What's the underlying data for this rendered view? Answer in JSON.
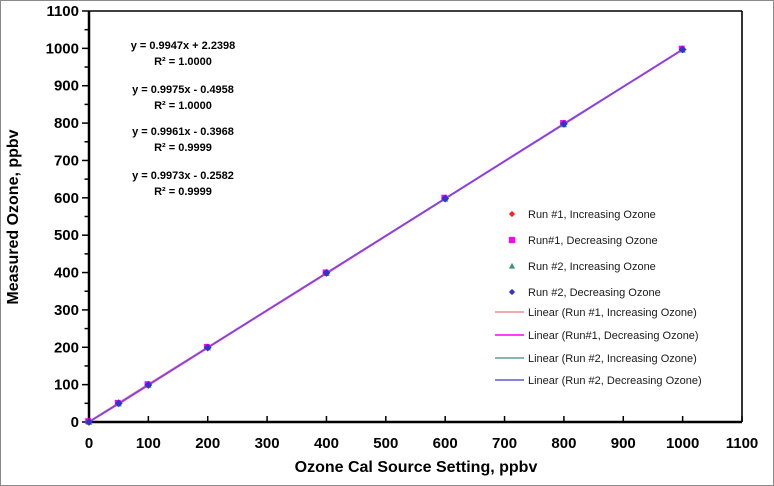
{
  "chart_data": {
    "type": "scatter",
    "title": "",
    "xlabel": "Ozone Cal Source Setting, ppbv",
    "ylabel": "Measured Ozone, ppbv",
    "xlim": [
      0,
      1100
    ],
    "ylim": [
      0,
      1100
    ],
    "x_tick_step_major": 100,
    "y_tick_step_major": 100,
    "y_tick_step_minor": 50,
    "grid": false,
    "legend_position": "right-inside",
    "x": [
      0,
      50,
      100,
      200,
      400,
      600,
      800,
      1000
    ],
    "series": [
      {
        "name": "Run #1, Increasing Ozone",
        "marker": "diamond",
        "marker_color": "#ff2020",
        "line_color": "#e89090",
        "trend_label": "Linear (Run #1, Increasing Ozone)",
        "equation": "y = 0.9947x + 2.2398",
        "r2": "R² = 1.0000",
        "eq_color": "#cc0000",
        "y": [
          2,
          52,
          102,
          201,
          400,
          599,
          798,
          997
        ]
      },
      {
        "name": "Run#1, Decreasing Ozone",
        "marker": "square",
        "marker_color": "#ff00ff",
        "line_color": "#ff00ff",
        "trend_label": "Linear (Run#1, Decreasing Ozone)",
        "equation": "y = 0.9975x - 0.4958",
        "r2": "R² = 1.0000",
        "eq_color": "#ff00ff",
        "y": [
          0,
          49,
          99,
          199,
          398,
          598,
          798,
          997
        ]
      },
      {
        "name": "Run #2, Increasing Ozone",
        "marker": "triangle",
        "marker_color": "#339966",
        "line_color": "#669999",
        "trend_label": "Linear (Run #2, Increasing Ozone)",
        "equation": "y = 0.9961x - 0.3968",
        "r2": "R² = 0.9999",
        "eq_color": "#339966",
        "y": [
          0,
          49,
          99,
          199,
          398,
          597,
          796,
          996
        ]
      },
      {
        "name": "Run #2, Decreasing Ozone",
        "marker": "diamond",
        "marker_color": "#3333cc",
        "line_color": "#5b5bd6",
        "trend_label": "Linear (Run #2, Decreasing Ozone)",
        "equation": "y = 0.9973x - 0.2582",
        "r2": "R² = 0.9999",
        "eq_color": "#333399",
        "y": [
          0,
          50,
          99,
          199,
          399,
          598,
          798,
          997
        ]
      }
    ]
  }
}
